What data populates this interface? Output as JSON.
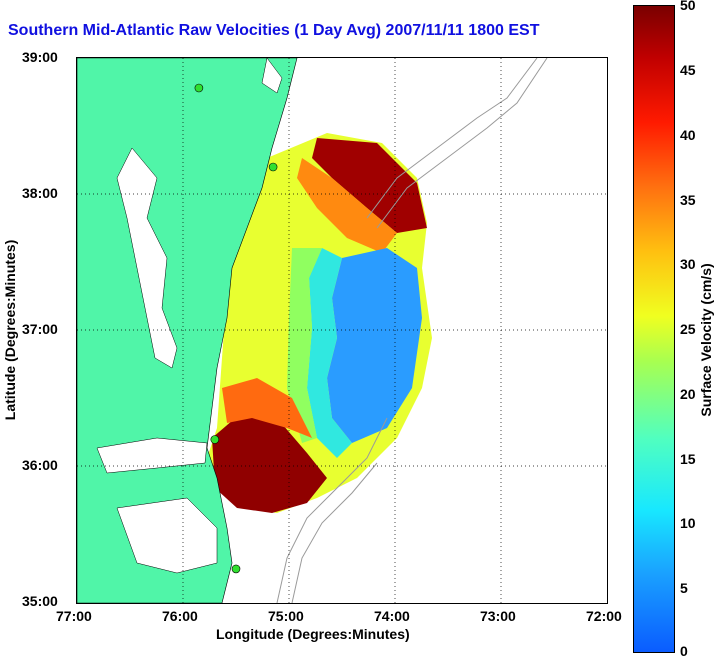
{
  "title": "Southern Mid-Atlantic Raw Velocities (1 Day Avg) 2007/11/11 1800 EST",
  "x_axis": {
    "label": "Longitude (Degrees:Minutes)",
    "ticks": [
      "77:00",
      "76:00",
      "75:00",
      "74:00",
      "73:00",
      "72:00"
    ]
  },
  "y_axis": {
    "label": "Latitude (Degrees:Minutes)",
    "ticks": [
      "39:00",
      "38:00",
      "37:00",
      "36:00",
      "35:00"
    ]
  },
  "colorbar": {
    "label": "Surface Velocity (cm/s)",
    "ticks": [
      "50",
      "45",
      "40",
      "35",
      "30",
      "25",
      "20",
      "15",
      "10",
      "5",
      "0"
    ],
    "range": [
      0,
      50
    ]
  },
  "colors": {
    "land": "#50f5a8",
    "title": "#1010e0",
    "station": "#30e030"
  },
  "map": {
    "lon_range": [
      -77,
      -72
    ],
    "lat_range": [
      35,
      39
    ],
    "grid": "dotted",
    "stations": [
      {
        "lon": -75.85,
        "lat": 38.78
      },
      {
        "lon": -75.15,
        "lat": 38.2
      },
      {
        "lon": -75.7,
        "lat": 36.2
      },
      {
        "lon": -75.5,
        "lat": 35.25
      }
    ]
  }
}
